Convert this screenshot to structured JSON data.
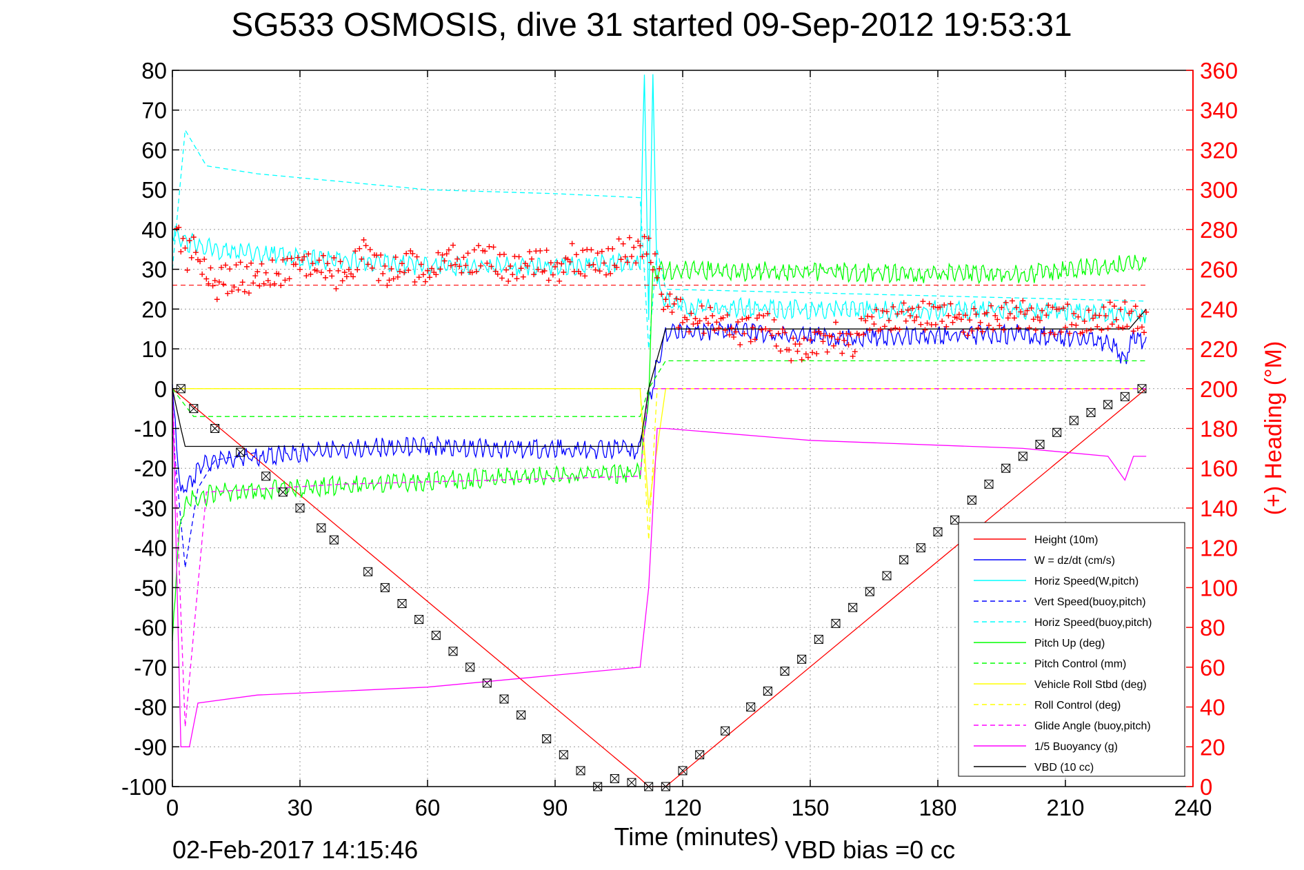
{
  "chart_data": {
    "type": "line",
    "title": "SG533 OSMOSIS, dive 31 started 09-Sep-2012 19:53:31",
    "xlabel": "Time (minutes)",
    "ylabel": "",
    "ylabel_right": "(+) Heading (°M)",
    "xlim": [
      0,
      240
    ],
    "ylim": [
      -100,
      80
    ],
    "ylim_right": [
      0,
      360
    ],
    "x_ticks": [
      "0",
      "30",
      "60",
      "90",
      "120",
      "150",
      "180",
      "210",
      "240"
    ],
    "y_ticks": [
      "80",
      "70",
      "60",
      "50",
      "40",
      "30",
      "20",
      "10",
      "0",
      "-10",
      "-20",
      "-30",
      "-40",
      "-50",
      "-60",
      "-70",
      "-80",
      "-90",
      "-100"
    ],
    "y_right_ticks": [
      "360",
      "340",
      "320",
      "300",
      "280",
      "260",
      "240",
      "220",
      "200",
      "180",
      "160",
      "140",
      "120",
      "100",
      "80",
      "60",
      "40",
      "20",
      "0"
    ],
    "grid": true,
    "legend_position": "bottom-right",
    "footer_date": "02-Feb-2017 14:15:46",
    "footer_note": "VBD bias =0 cc",
    "colors": {
      "red": "#ff0000",
      "blue": "#0000ff",
      "cyan": "#00ffff",
      "green": "#00ff00",
      "yellow": "#ffff00",
      "magenta": "#ff00ff",
      "black": "#000000"
    },
    "series": [
      {
        "name": "Height (10m)",
        "color": "#ff0000",
        "style": "solid",
        "x": [
          0,
          110,
          112,
          116,
          229
        ],
        "y": [
          0,
          -98,
          -100,
          -100,
          0
        ]
      },
      {
        "name": "W = dz/dt (cm/s)",
        "color": "#0000ff",
        "style": "solid",
        "x": [
          0,
          2,
          4,
          8,
          20,
          40,
          60,
          80,
          100,
          110,
          112,
          114,
          116,
          120,
          140,
          160,
          200,
          220,
          224,
          226,
          229
        ],
        "y": [
          0,
          -25,
          -22,
          -17,
          -16,
          -14,
          -13,
          -14,
          -14,
          -14,
          -3,
          8,
          15,
          16,
          15,
          14,
          15,
          13,
          9,
          14,
          13
        ]
      },
      {
        "name": "Horiz Speed(W,pitch)",
        "color": "#00ffff",
        "style": "solid",
        "x": [
          0,
          3,
          5,
          10,
          30,
          60,
          90,
          110,
          111,
          112,
          113,
          114,
          116,
          120,
          150,
          200,
          229
        ],
        "y": [
          40,
          38,
          38,
          36,
          34,
          32,
          32,
          33,
          80,
          20,
          80,
          28,
          23,
          22,
          21,
          21,
          20
        ]
      },
      {
        "name": "Vert Speed(buoy,pitch)",
        "color": "#0000ff",
        "style": "dashed",
        "x": [
          0,
          3,
          6,
          10,
          20
        ],
        "y": [
          -10,
          -45,
          -25,
          -18,
          -16
        ]
      },
      {
        "name": "Horiz Speed(buoy,pitch)",
        "color": "#00ffff",
        "style": "dashed",
        "x": [
          0,
          3,
          8,
          20,
          40,
          60,
          90,
          110,
          112,
          114,
          116,
          229
        ],
        "y": [
          30,
          65,
          56,
          54,
          52,
          50,
          49,
          48,
          10,
          35,
          25,
          22
        ]
      },
      {
        "name": "Pitch Up (deg)",
        "color": "#00ff00",
        "style": "solid",
        "x": [
          0,
          2,
          4,
          10,
          40,
          80,
          110,
          112,
          113,
          116,
          200,
          229
        ],
        "y": [
          -60,
          -30,
          -27,
          -25,
          -23,
          -21,
          -20,
          0,
          30,
          31,
          30,
          33
        ]
      },
      {
        "name": "Pitch Control (mm)",
        "color": "#00ff00",
        "style": "dashed",
        "x": [
          0,
          5,
          110,
          112,
          116,
          229
        ],
        "y": [
          0,
          -7,
          -7,
          0,
          7,
          7
        ]
      },
      {
        "name": "Vehicle Roll Stbd (deg)",
        "color": "#ffff00",
        "style": "solid",
        "x": [
          0,
          110,
          112,
          116,
          229
        ],
        "y": [
          0,
          0,
          -30,
          0,
          0
        ]
      },
      {
        "name": "Roll Control (deg)",
        "color": "#ffff00",
        "style": "dashed",
        "x": [
          0,
          110,
          112,
          114,
          229
        ],
        "y": [
          0,
          0,
          -38,
          0,
          0
        ]
      },
      {
        "name": "Glide Angle (buoy,pitch)",
        "color": "#ff00ff",
        "style": "dashed",
        "x": [
          0,
          3,
          8,
          40,
          110,
          112,
          116,
          229
        ],
        "y": [
          0,
          -85,
          -26,
          -24,
          -22,
          0,
          0,
          0
        ]
      },
      {
        "name": "1/5 Buoyancy (g)",
        "color": "#ff00ff",
        "style": "solid",
        "x": [
          0,
          2,
          4,
          6,
          20,
          60,
          90,
          110,
          112,
          114,
          116,
          150,
          200,
          220,
          224,
          226,
          229
        ],
        "y": [
          0,
          -90,
          -90,
          -79,
          -77,
          -75,
          -72,
          -70,
          -50,
          -10,
          -10,
          -13,
          -15,
          -17,
          -23,
          -17,
          -17
        ]
      },
      {
        "name": "VBD (10 cc)",
        "color": "#000000",
        "style": "solid",
        "x": [
          0,
          2,
          3,
          110,
          112,
          116,
          225,
          229
        ],
        "y": [
          0,
          -10,
          -14.5,
          -14.5,
          0,
          15,
          15,
          20
        ]
      }
    ],
    "heading": {
      "name": "(+) Heading",
      "color": "#ff0000",
      "marker": "+",
      "mean_dashed_y": 26,
      "x": [
        1,
        3,
        5,
        7,
        10,
        15,
        20,
        25,
        30,
        35,
        40,
        45,
        50,
        55,
        60,
        65,
        70,
        75,
        80,
        85,
        90,
        95,
        100,
        105,
        110,
        113,
        116,
        120,
        125,
        130,
        135,
        140,
        145,
        150,
        155,
        160,
        165,
        170,
        175,
        180,
        185,
        190,
        195,
        200,
        205,
        210,
        215,
        220,
        225,
        229
      ],
      "y": [
        290,
        270,
        275,
        265,
        255,
        262,
        258,
        262,
        268,
        265,
        260,
        272,
        262,
        268,
        262,
        270,
        266,
        272,
        262,
        268,
        265,
        270,
        265,
        272,
        275,
        270,
        248,
        240,
        238,
        235,
        232,
        238,
        222,
        225,
        230,
        228,
        238,
        240,
        242,
        238,
        240,
        236,
        240,
        242,
        238,
        240,
        236,
        242,
        240,
        238
      ]
    },
    "vbd_markers": {
      "x": [
        2,
        5,
        10,
        16,
        22,
        26,
        30,
        35,
        38,
        46,
        50,
        54,
        58,
        62,
        66,
        70,
        74,
        78,
        82,
        88,
        92,
        96,
        100,
        104,
        108,
        112,
        116,
        120,
        124,
        130,
        136,
        140,
        144,
        148,
        152,
        156,
        160,
        164,
        168,
        172,
        176,
        180,
        184,
        188,
        192,
        196,
        200,
        204,
        208,
        212,
        216,
        220,
        224,
        228
      ],
      "y": [
        0,
        -5,
        -10,
        -16,
        -22,
        -26,
        -30,
        -35,
        -38,
        -46,
        -50,
        -54,
        -58,
        -62,
        -66,
        -70,
        -74,
        -78,
        -82,
        -88,
        -92,
        -96,
        -100,
        -98,
        -99,
        -100,
        -100,
        -96,
        -92,
        -86,
        -80,
        -76,
        -71,
        -68,
        -63,
        -59,
        -55,
        -51,
        -47,
        -43,
        -40,
        -36,
        -33,
        -28,
        -24,
        -20,
        -17,
        -14,
        -11,
        -8,
        -6,
        -4,
        -2,
        0
      ]
    }
  }
}
